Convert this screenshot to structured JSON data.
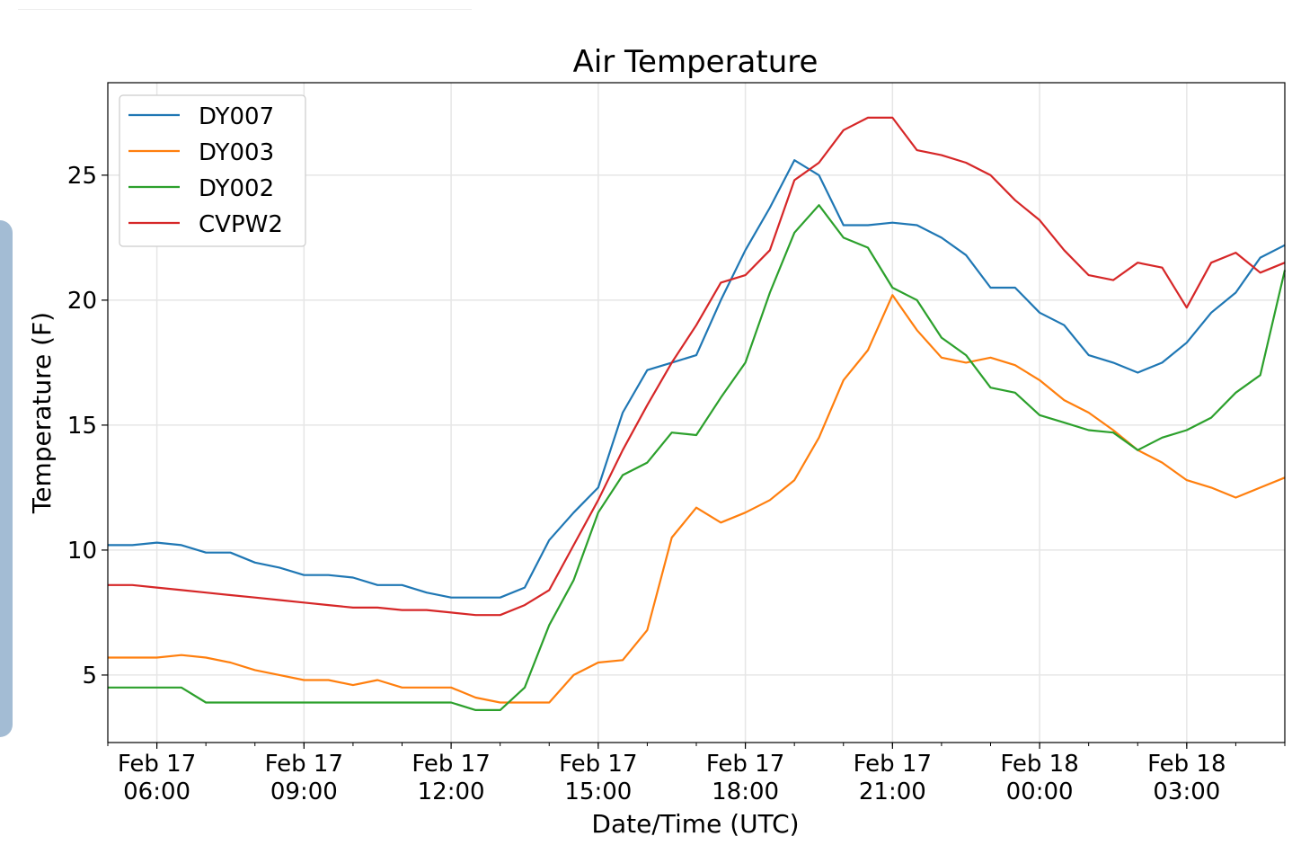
{
  "chart_data": {
    "type": "line",
    "title": "Air Temperature",
    "xlabel": "Date/Time (UTC)",
    "ylabel": "Temperature (F)",
    "x_unit": "hours since Feb 17 05:00 UTC",
    "xlim": [
      0,
      24
    ],
    "ylim": [
      2.3,
      28.7
    ],
    "grid": true,
    "legend_position": "top-left",
    "yticks": [
      5,
      10,
      15,
      20,
      25
    ],
    "xticks": [
      {
        "x": 1,
        "line1": "Feb 17",
        "line2": "06:00"
      },
      {
        "x": 4,
        "line1": "Feb 17",
        "line2": "09:00"
      },
      {
        "x": 7,
        "line1": "Feb 17",
        "line2": "12:00"
      },
      {
        "x": 10,
        "line1": "Feb 17",
        "line2": "15:00"
      },
      {
        "x": 13,
        "line1": "Feb 17",
        "line2": "18:00"
      },
      {
        "x": 16,
        "line1": "Feb 17",
        "line2": "21:00"
      },
      {
        "x": 19,
        "line1": "Feb 18",
        "line2": "00:00"
      },
      {
        "x": 22,
        "line1": "Feb 18",
        "line2": "03:00"
      }
    ],
    "x": [
      0,
      0.5,
      1,
      1.5,
      2,
      2.5,
      3,
      3.5,
      4,
      4.5,
      5,
      5.5,
      6,
      6.5,
      7,
      7.5,
      8,
      8.5,
      9,
      9.5,
      10,
      10.5,
      11,
      11.5,
      12,
      12.5,
      13,
      13.5,
      14,
      14.5,
      15,
      15.5,
      16,
      16.5,
      17,
      17.5,
      18,
      18.5,
      19,
      19.5,
      20,
      20.5,
      21,
      21.5,
      22,
      22.5,
      23,
      23.5,
      24
    ],
    "series": [
      {
        "name": "DY007",
        "color": "#1f77b4",
        "values": [
          10.2,
          10.2,
          10.3,
          10.2,
          9.9,
          9.9,
          9.5,
          9.3,
          9.0,
          9.0,
          8.9,
          8.6,
          8.6,
          8.3,
          8.1,
          8.1,
          8.1,
          8.5,
          10.4,
          11.5,
          12.5,
          15.5,
          17.2,
          17.5,
          17.8,
          20.0,
          22.0,
          23.7,
          25.6,
          25.0,
          23.0,
          23.0,
          23.1,
          23.0,
          22.5,
          21.8,
          20.5,
          20.5,
          19.5,
          19.0,
          17.8,
          17.5,
          17.1,
          17.5,
          18.3,
          19.5,
          20.3,
          21.7,
          22.2
        ]
      },
      {
        "name": "DY003",
        "color": "#ff7f0e",
        "values": [
          5.7,
          5.7,
          5.7,
          5.8,
          5.7,
          5.5,
          5.2,
          5.0,
          4.8,
          4.8,
          4.6,
          4.8,
          4.5,
          4.5,
          4.5,
          4.1,
          3.9,
          3.9,
          3.9,
          5.0,
          5.5,
          5.6,
          6.8,
          10.5,
          11.7,
          11.1,
          11.5,
          12.0,
          12.8,
          14.5,
          16.8,
          18.0,
          20.2,
          18.8,
          17.7,
          17.5,
          17.7,
          17.4,
          16.8,
          16.0,
          15.5,
          14.8,
          14.0,
          13.5,
          12.8,
          12.5,
          12.1,
          12.5,
          12.9
        ]
      },
      {
        "name": "DY002",
        "color": "#2ca02c",
        "values": [
          4.5,
          4.5,
          4.5,
          4.5,
          3.9,
          3.9,
          3.9,
          3.9,
          3.9,
          3.9,
          3.9,
          3.9,
          3.9,
          3.9,
          3.9,
          3.6,
          3.6,
          4.5,
          7.0,
          8.8,
          11.5,
          13.0,
          13.5,
          14.7,
          14.6,
          16.1,
          17.5,
          20.3,
          22.7,
          23.8,
          22.5,
          22.1,
          20.5,
          20.0,
          18.5,
          17.8,
          16.5,
          16.3,
          15.4,
          15.1,
          14.8,
          14.7,
          14.0,
          14.5,
          14.8,
          15.3,
          16.3,
          17.0,
          21.2
        ]
      },
      {
        "name": "CVPW2",
        "color": "#d62728",
        "values": [
          8.6,
          8.6,
          8.5,
          8.4,
          8.3,
          8.2,
          8.1,
          8.0,
          7.9,
          7.8,
          7.7,
          7.7,
          7.6,
          7.6,
          7.5,
          7.4,
          7.4,
          7.8,
          8.4,
          10.2,
          12.0,
          14.0,
          15.8,
          17.5,
          19.0,
          20.7,
          21.0,
          22.0,
          24.8,
          25.5,
          26.8,
          27.3,
          27.3,
          26.0,
          25.8,
          25.5,
          25.0,
          24.0,
          23.2,
          22.0,
          21.0,
          20.8,
          21.5,
          21.3,
          19.7,
          21.5,
          21.9,
          21.1,
          21.5
        ]
      }
    ]
  }
}
